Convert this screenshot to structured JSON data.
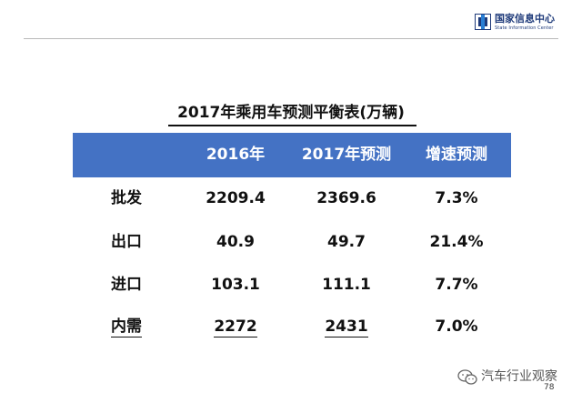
{
  "header": {
    "logo_cn": "国家信息中心",
    "logo_en": "State Information Center"
  },
  "title": "2017年乘用车预测平衡表(万辆)",
  "table": {
    "columns": [
      "",
      "2016年",
      "2017年预测",
      "增速预测"
    ],
    "rows": [
      {
        "label": "批发",
        "y2016": "2209.4",
        "y2017": "2369.6",
        "growth": "7.3%"
      },
      {
        "label": "出口",
        "y2016": "40.9",
        "y2017": "49.7",
        "growth": "21.4%"
      },
      {
        "label": "进口",
        "y2016": "103.1",
        "y2017": "111.1",
        "growth": "7.7%"
      },
      {
        "label": "内需",
        "y2016": "2272",
        "y2017": "2431",
        "growth": "7.0%"
      }
    ]
  },
  "watermark": "汽车行业观察",
  "page_number": "78",
  "colors": {
    "header_fill": "#4472c4",
    "logo_blue": "#1e3a7a",
    "logo_accent": "#2a7fd4"
  },
  "icons": {
    "logo": "state-information-center-logo",
    "watermark": "wechat-icon"
  }
}
